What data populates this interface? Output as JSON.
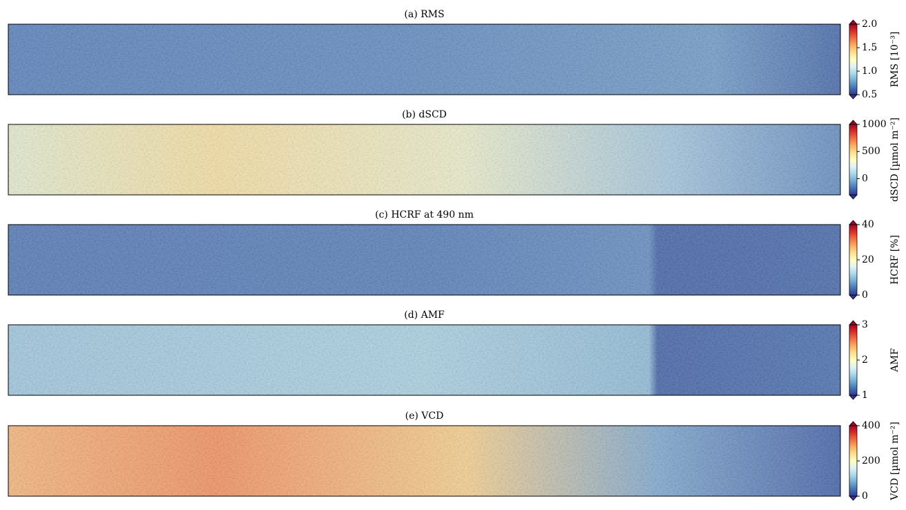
{
  "chart_data": [
    {
      "type": "heatmap",
      "title": "(a) RMS",
      "colorbar_label": "RMS [10⁻³]",
      "clim": [
        0.5,
        2.0
      ],
      "cticks": [
        {
          "value": 0.5,
          "label": "0.5"
        },
        {
          "value": 1.0,
          "label": "1.0"
        },
        {
          "value": 1.5,
          "label": "1.5"
        },
        {
          "value": 2.0,
          "label": "2.0"
        }
      ],
      "colors": [
        "#313695",
        "#4575b4",
        "#74add1",
        "#abd9e9",
        "#e0f3f8",
        "#ffffbf",
        "#fee090",
        "#fdae61",
        "#f46d43",
        "#d73027",
        "#a50026"
      ]
    },
    {
      "type": "heatmap",
      "title": "(b) dSCD",
      "colorbar_label": "dSCD [µmol m⁻²]",
      "clim": [
        -300,
        1000
      ],
      "cticks": [
        0,
        500,
        1000
      ],
      "colors": [
        "#313695",
        "#4575b4",
        "#74add1",
        "#abd9e9",
        "#e0f3f8",
        "#ffffbf",
        "#fee090",
        "#fdae61",
        "#f46d43",
        "#d73027",
        "#a50026"
      ]
    },
    {
      "type": "heatmap",
      "title": "(c) HCRF at 490 nm",
      "colorbar_label": "HCRF [%]",
      "clim": [
        0,
        40
      ],
      "cticks": [
        0,
        20,
        40
      ],
      "colors": [
        "#313695",
        "#4575b4",
        "#74add1",
        "#abd9e9",
        "#e0f3f8",
        "#ffffbf",
        "#fee090",
        "#fdae61",
        "#f46d43",
        "#d73027",
        "#a50026"
      ]
    },
    {
      "type": "heatmap",
      "title": "(d) AMF",
      "colorbar_label": "AMF",
      "clim": [
        1,
        3
      ],
      "cticks": [
        1,
        2,
        3
      ],
      "colors": [
        "#313695",
        "#4575b4",
        "#74add1",
        "#abd9e9",
        "#e0f3f8",
        "#ffffbf",
        "#fee090",
        "#fdae61",
        "#f46d43",
        "#d73027",
        "#a50026"
      ]
    },
    {
      "type": "heatmap",
      "title": "(e) VCD",
      "colorbar_label": "VCD [µmol m⁻²]",
      "clim": [
        0,
        400
      ],
      "cticks": [
        0,
        200,
        400
      ],
      "colors": [
        "#313695",
        "#4575b4",
        "#74add1",
        "#abd9e9",
        "#e0f3f8",
        "#ffffbf",
        "#fee090",
        "#fdae61",
        "#f46d43",
        "#d73027",
        "#a50026"
      ]
    }
  ]
}
